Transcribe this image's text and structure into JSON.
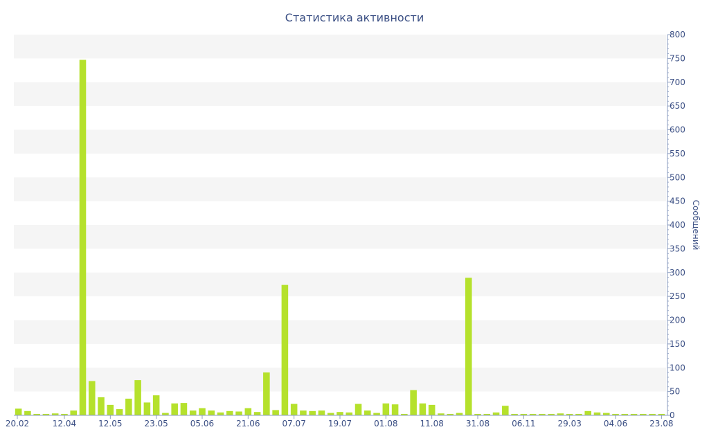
{
  "chart_data": {
    "type": "bar",
    "title": "Статистика активности",
    "xlabel": "",
    "ylabel": "Сообщений",
    "ylim": [
      0,
      800
    ],
    "yticks": [
      0,
      50,
      100,
      150,
      200,
      250,
      300,
      350,
      400,
      450,
      500,
      550,
      600,
      650,
      700,
      750,
      800
    ],
    "y_axis_side": "right",
    "grid": "alternating horizontal bands",
    "colors": {
      "bar": "#b5e12c",
      "band": "#f5f5f5",
      "text": "#3b4f84",
      "axis": "#8a9bbf"
    },
    "x_ticks": [
      {
        "label": "20.02",
        "index": 0
      },
      {
        "label": "12.04",
        "index": 5
      },
      {
        "label": "12.05",
        "index": 10
      },
      {
        "label": "23.05",
        "index": 15
      },
      {
        "label": "05.06",
        "index": 20
      },
      {
        "label": "21.06",
        "index": 25
      },
      {
        "label": "07.07",
        "index": 30
      },
      {
        "label": "19.07",
        "index": 35
      },
      {
        "label": "01.08",
        "index": 40
      },
      {
        "label": "11.08",
        "index": 45
      },
      {
        "label": "31.08",
        "index": 50
      },
      {
        "label": "06.11",
        "index": 55
      },
      {
        "label": "29.03",
        "index": 60
      },
      {
        "label": "04.06",
        "index": 65
      },
      {
        "label": "23.08",
        "index": 70
      }
    ],
    "values": [
      14,
      9,
      3,
      3,
      4,
      3,
      10,
      747,
      72,
      38,
      22,
      13,
      35,
      74,
      27,
      42,
      5,
      25,
      26,
      10,
      15,
      10,
      6,
      9,
      8,
      15,
      7,
      90,
      11,
      274,
      24,
      10,
      9,
      10,
      5,
      7,
      6,
      24,
      10,
      5,
      25,
      23,
      3,
      53,
      25,
      22,
      4,
      3,
      5,
      289,
      3,
      3,
      6,
      20,
      3,
      3,
      3,
      3,
      3,
      4,
      3,
      3,
      9,
      6,
      5,
      3,
      3,
      3,
      3,
      3,
      3
    ]
  }
}
